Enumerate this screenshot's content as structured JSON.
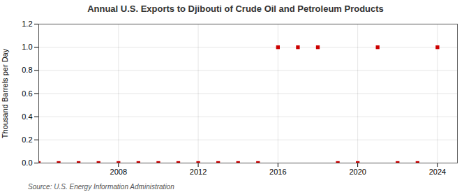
{
  "chart_data": {
    "type": "scatter",
    "title": "Annual U.S. Exports to Djibouti of Crude Oil and Petroleum Products",
    "ylabel": "Thousand Barrels per Day",
    "source": "Source: U.S. Energy Information Administration",
    "x": [
      2004,
      2005,
      2006,
      2007,
      2008,
      2009,
      2010,
      2011,
      2012,
      2013,
      2014,
      2015,
      2016,
      2017,
      2018,
      2019,
      2020,
      2021,
      2022,
      2023,
      2024
    ],
    "values": [
      0,
      0,
      0,
      0,
      0,
      0,
      0,
      0,
      0,
      0,
      0,
      0,
      1,
      1,
      1,
      0,
      0,
      1,
      0,
      0,
      1
    ],
    "color": "#cc0000",
    "marker": "square",
    "xlim": [
      2004,
      2025
    ],
    "xticks": [
      2008,
      2012,
      2016,
      2020,
      2024
    ],
    "ylim": [
      0.0,
      1.2
    ],
    "yticks": [
      {
        "value": 0,
        "label": "0.0"
      },
      0.2,
      0.4,
      0.6,
      0.8,
      {
        "value": 1,
        "label": "1.0"
      },
      1.2
    ],
    "grid": true
  }
}
